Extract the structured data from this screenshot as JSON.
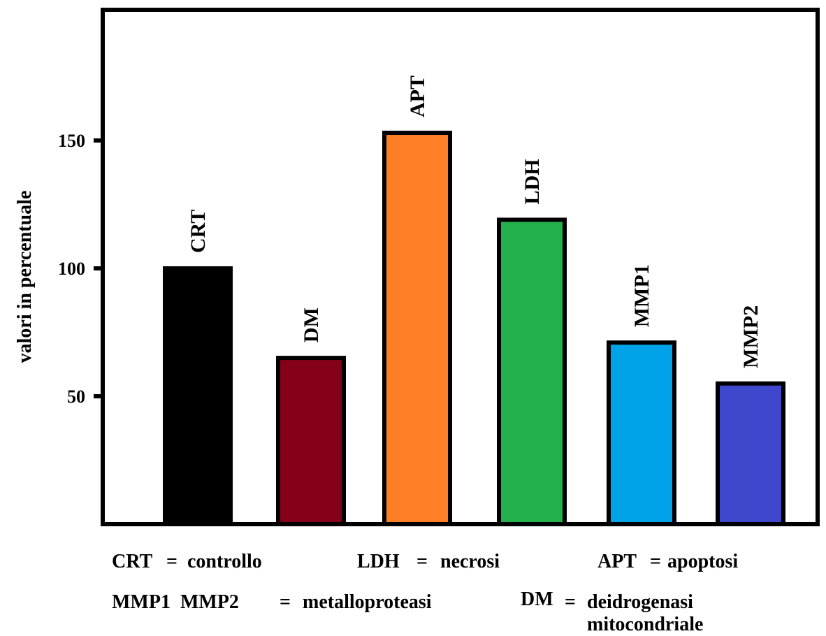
{
  "chart_data": {
    "type": "bar",
    "categories": [
      "CRT",
      "DM",
      "APT",
      "LDH",
      "MMP1",
      "MMP2"
    ],
    "values": [
      100,
      65,
      153,
      119,
      71,
      55
    ],
    "colors": [
      "#000000",
      "#850019",
      "#ff7f27",
      "#22b14c",
      "#00a2e8",
      "#3f48cc"
    ],
    "ylabel": "valori in percentuale",
    "yticks": [
      50,
      100,
      150
    ],
    "ylim": [
      0,
      200
    ],
    "grid": false,
    "legend": [
      {
        "key": "CRT",
        "sep": "=",
        "text": "controllo"
      },
      {
        "key": "LDH",
        "sep": "=",
        "text": "necrosi"
      },
      {
        "key": "APT",
        "sep": "=",
        "text": "apoptosi"
      },
      {
        "key": "MMP1  MMP2",
        "sep": "=",
        "text": "metalloproteasi"
      },
      {
        "key": "DM",
        "sep": "=",
        "text": "deidrogenasi"
      },
      {
        "key": "",
        "sep": "",
        "text": "mitocondriale"
      }
    ]
  }
}
